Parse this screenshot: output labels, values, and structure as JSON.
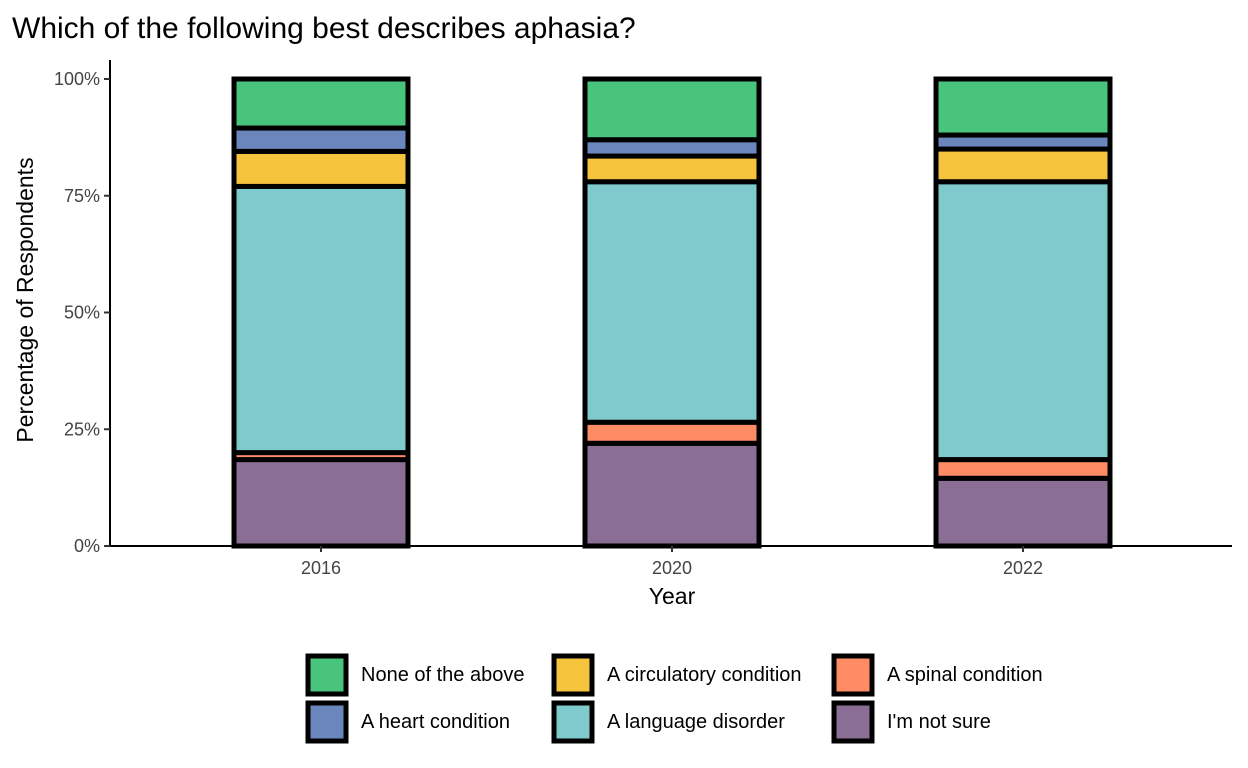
{
  "chart_data": {
    "type": "bar",
    "stacked": true,
    "title": "Which of the following best describes aphasia?",
    "xlabel": "Year",
    "ylabel": "Percentage of Respondents",
    "ylim": [
      0,
      100
    ],
    "yticks": [
      "0%",
      "25%",
      "50%",
      "75%",
      "100%"
    ],
    "categories": [
      "2016",
      "2020",
      "2022"
    ],
    "grid": false,
    "legend_position": "bottom",
    "series": [
      {
        "name": "I'm not sure",
        "color": "#8A6E96",
        "values": [
          18.5,
          22,
          14.5
        ]
      },
      {
        "name": "A spinal condition",
        "color": "#FF8C65",
        "values": [
          1.5,
          4.5,
          4
        ]
      },
      {
        "name": "A language disorder",
        "color": "#7ECACD",
        "values": [
          57,
          51.5,
          59.5
        ]
      },
      {
        "name": "A circulatory condition",
        "color": "#F6C33C",
        "values": [
          7.5,
          5.5,
          7
        ]
      },
      {
        "name": "A heart condition",
        "color": "#6A86BC",
        "values": [
          5,
          3.5,
          3
        ]
      },
      {
        "name": "None of the above",
        "color": "#48C47C",
        "values": [
          10.5,
          13,
          12
        ]
      }
    ],
    "legend_order": [
      "None of the above",
      "A circulatory condition",
      "A spinal condition",
      "A heart condition",
      "A language disorder",
      "I'm not sure"
    ]
  }
}
